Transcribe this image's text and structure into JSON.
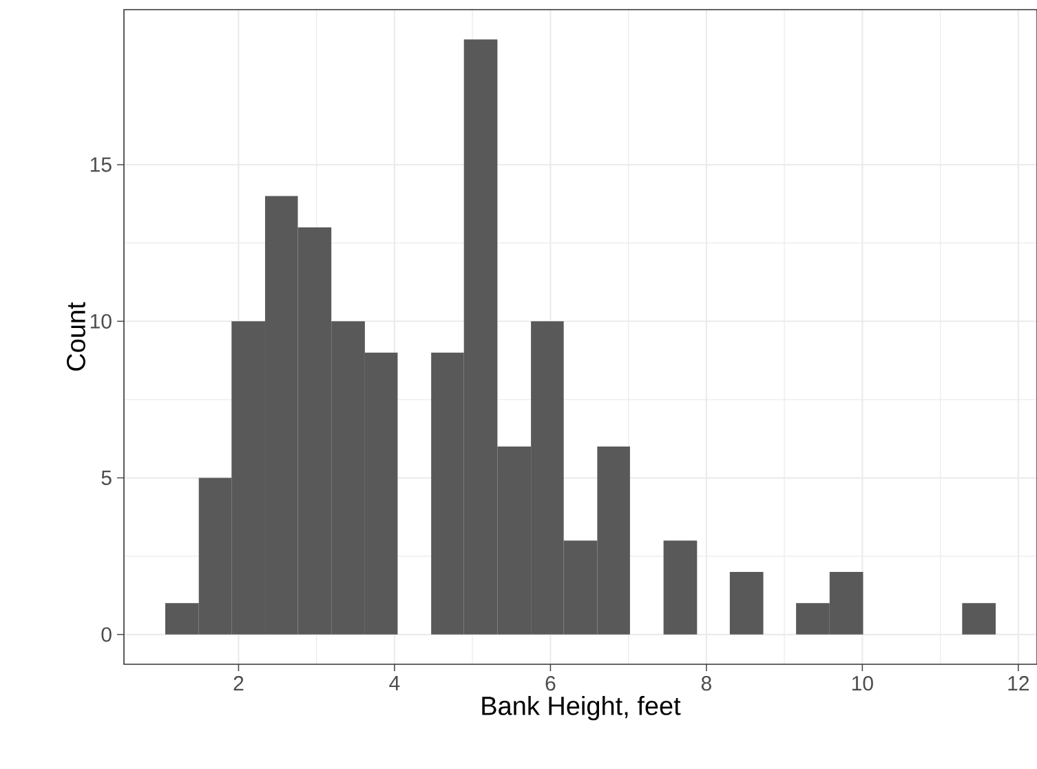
{
  "chart_data": {
    "type": "histogram",
    "xlabel": "Bank Height, feet",
    "ylabel": "Count",
    "bins": [
      1.06,
      1.49,
      1.91,
      2.34,
      2.76,
      3.19,
      3.62,
      4.04,
      4.47,
      4.89,
      5.32,
      5.75,
      6.17,
      6.6,
      7.02,
      7.45,
      7.88,
      8.3,
      8.73,
      9.15,
      9.58,
      10.01,
      11.28,
      11.71
    ],
    "values": [
      1,
      5,
      10,
      14,
      13,
      10,
      9,
      0,
      9,
      19,
      6,
      10,
      3,
      6,
      0,
      3,
      0,
      2,
      0,
      1,
      2,
      0,
      1
    ],
    "color": "#595959",
    "xlim": [
      0.53,
      12.24
    ],
    "xticks": [
      2,
      4,
      6,
      8,
      10,
      12
    ],
    "ylim": [
      -0.95,
      19.95
    ],
    "yticks": [
      0,
      5,
      10,
      15
    ],
    "grid": true
  }
}
